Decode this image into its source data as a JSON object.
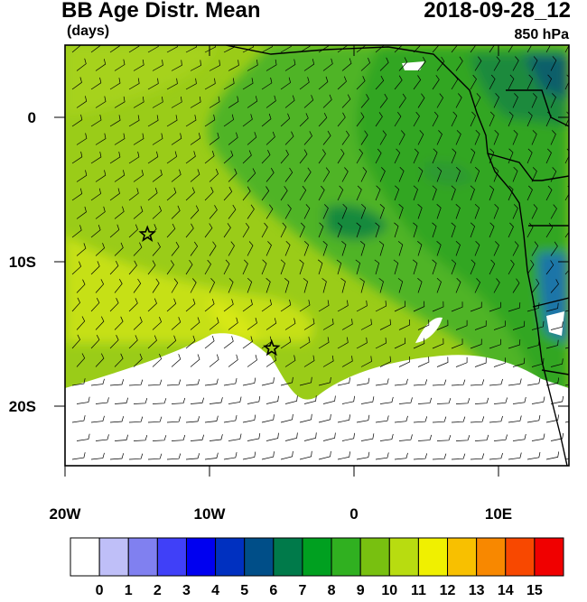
{
  "header": {
    "title": "BB Age Distr. Mean",
    "units": "(days)",
    "datetime": "2018-09-28_12",
    "level": "850 hPa"
  },
  "map": {
    "lat_labels": [
      "0",
      "10S",
      "20S"
    ],
    "lon_labels": [
      "20W",
      "10W",
      "0",
      "10E"
    ],
    "markers": [
      {
        "name": "star-marker-west",
        "lon": -14.3,
        "lat": -8.1
      },
      {
        "name": "star-marker-south",
        "lon": -5.7,
        "lat": -16.0
      }
    ]
  },
  "colorbar": {
    "labels": [
      "0",
      "1",
      "2",
      "3",
      "4",
      "5",
      "6",
      "7",
      "8",
      "9",
      "10",
      "11",
      "12",
      "13",
      "14",
      "15"
    ],
    "colors": [
      "#ffffff",
      "#bfbff8",
      "#8080f0",
      "#4040f8",
      "#0000f0",
      "#0030c0",
      "#004e88",
      "#007a4a",
      "#00a020",
      "#30b020",
      "#78c010",
      "#b8dc10",
      "#f0f000",
      "#f8c000",
      "#f88800",
      "#f84800",
      "#f00000"
    ]
  }
}
